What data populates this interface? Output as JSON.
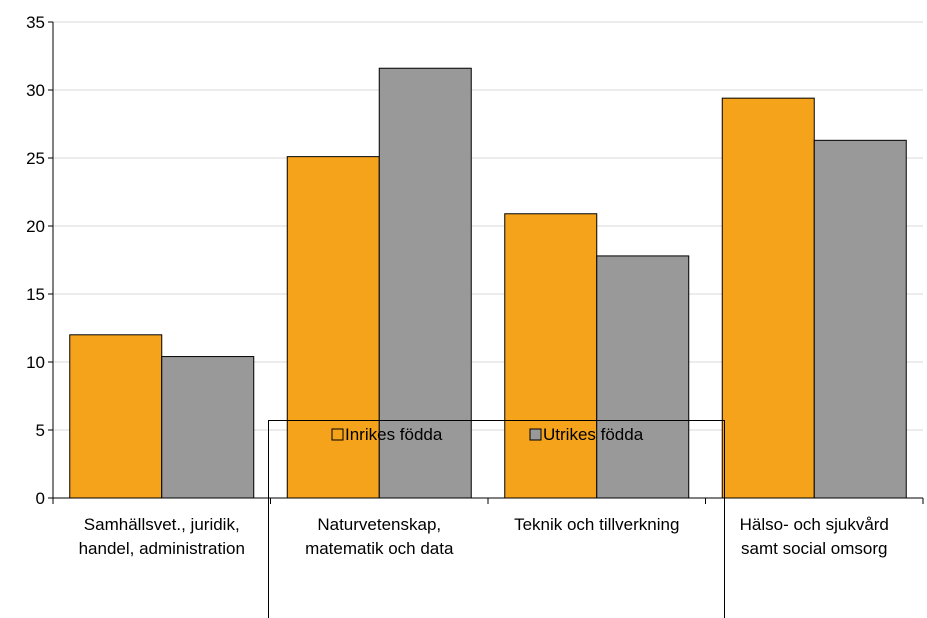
{
  "chart_data": {
    "type": "bar",
    "categories": [
      [
        "Samhällsvet., juridik,",
        "handel, administration"
      ],
      [
        "Naturvetenskap,",
        "matematik och data"
      ],
      [
        "Teknik och tillverkning"
      ],
      [
        "Hälso- och sjukvård",
        "samt social omsorg"
      ]
    ],
    "series": [
      {
        "name": "Inrikes födda",
        "values": [
          12.0,
          25.1,
          20.9,
          29.4
        ],
        "color": "#F4A31B"
      },
      {
        "name": "Utrikes födda",
        "values": [
          10.4,
          31.6,
          17.8,
          26.3
        ],
        "color": "#999999"
      }
    ],
    "ylim": [
      0,
      35
    ],
    "yticks": [
      "0",
      "5",
      "10",
      "15",
      "20",
      "25",
      "30",
      "35"
    ],
    "grid": true,
    "legend": "bottom",
    "title": "",
    "xlabel": "",
    "ylabel": ""
  }
}
